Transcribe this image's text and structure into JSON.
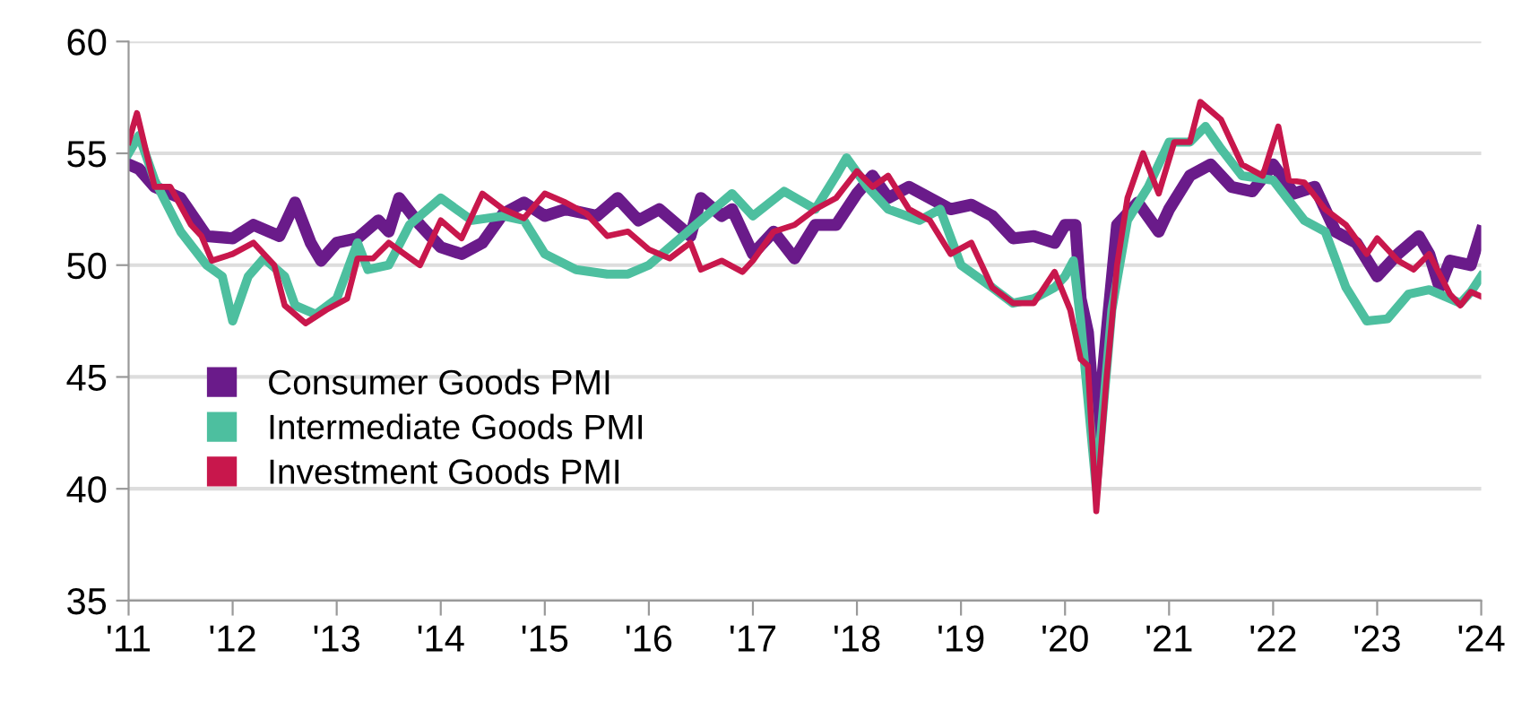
{
  "chart_data": {
    "type": "line",
    "xlim": [
      2011,
      2024
    ],
    "ylim": [
      35,
      60
    ],
    "yticks": [
      35,
      40,
      45,
      50,
      55,
      60
    ],
    "xticks": [
      {
        "value": 2011,
        "label": "'11"
      },
      {
        "value": 2012,
        "label": "'12"
      },
      {
        "value": 2013,
        "label": "'13"
      },
      {
        "value": 2014,
        "label": "'14"
      },
      {
        "value": 2015,
        "label": "'15"
      },
      {
        "value": 2016,
        "label": "'16"
      },
      {
        "value": 2017,
        "label": "'17"
      },
      {
        "value": 2018,
        "label": "'18"
      },
      {
        "value": 2019,
        "label": "'19"
      },
      {
        "value": 2020,
        "label": "'20"
      },
      {
        "value": 2021,
        "label": "'21"
      },
      {
        "value": 2022,
        "label": "'22"
      },
      {
        "value": 2023,
        "label": "'23"
      },
      {
        "value": 2024,
        "label": "'24"
      }
    ],
    "grid": "y",
    "legend": "bottom left",
    "marker": "none",
    "line_style": "solid",
    "series": [
      {
        "name": "Consumer Goods PMI",
        "color": "#6a1b8a",
        "x": [
          2011.0,
          2011.1,
          2011.25,
          2011.5,
          2011.75,
          2012.0,
          2012.2,
          2012.45,
          2012.6,
          2012.75,
          2012.85,
          2013.0,
          2013.2,
          2013.4,
          2013.5,
          2013.6,
          2013.8,
          2014.0,
          2014.2,
          2014.4,
          2014.6,
          2014.8,
          2015.0,
          2015.2,
          2015.5,
          2015.7,
          2015.9,
          2016.1,
          2016.4,
          2016.5,
          2016.7,
          2016.8,
          2017.0,
          2017.2,
          2017.4,
          2017.6,
          2017.8,
          2018.0,
          2018.15,
          2018.3,
          2018.5,
          2018.7,
          2018.9,
          2019.1,
          2019.3,
          2019.5,
          2019.7,
          2019.9,
          2020.0,
          2020.1,
          2020.15,
          2020.22,
          2020.3,
          2020.4,
          2020.5,
          2020.7,
          2020.9,
          2021.0,
          2021.2,
          2021.4,
          2021.5,
          2021.6,
          2021.8,
          2022.0,
          2022.2,
          2022.4,
          2022.6,
          2022.8,
          2023.0,
          2023.2,
          2023.4,
          2023.5,
          2023.6,
          2023.7,
          2023.9,
          2024.0
        ],
        "values": [
          54.5,
          54.3,
          53.5,
          53.0,
          51.3,
          51.2,
          51.8,
          51.3,
          52.8,
          51.0,
          50.2,
          51.0,
          51.2,
          52.0,
          51.5,
          53.0,
          51.8,
          50.8,
          50.5,
          51.0,
          52.3,
          52.8,
          52.2,
          52.5,
          52.2,
          53.0,
          52.0,
          52.5,
          51.3,
          53.0,
          52.2,
          52.5,
          50.5,
          51.5,
          50.3,
          51.8,
          51.8,
          53.2,
          54.0,
          53.0,
          53.5,
          53.0,
          52.5,
          52.7,
          52.2,
          51.2,
          51.3,
          51.0,
          51.8,
          51.8,
          48.5,
          47.0,
          42.0,
          47.0,
          51.8,
          52.8,
          51.5,
          52.5,
          54.0,
          54.5,
          54.0,
          53.5,
          53.3,
          54.5,
          53.2,
          53.5,
          51.5,
          51.0,
          49.5,
          50.5,
          51.3,
          50.5,
          49.0,
          50.2,
          50.0,
          51.5
        ]
      },
      {
        "name": "Intermediate Goods PMI",
        "color": "#4dbf9f",
        "x": [
          2011.0,
          2011.1,
          2011.25,
          2011.5,
          2011.75,
          2011.9,
          2012.0,
          2012.15,
          2012.3,
          2012.5,
          2012.6,
          2012.8,
          2013.0,
          2013.2,
          2013.3,
          2013.5,
          2013.7,
          2014.0,
          2014.3,
          2014.6,
          2014.8,
          2015.0,
          2015.3,
          2015.6,
          2015.8,
          2016.0,
          2016.2,
          2016.5,
          2016.8,
          2017.0,
          2017.3,
          2017.6,
          2017.8,
          2017.9,
          2018.1,
          2018.3,
          2018.6,
          2018.8,
          2019.0,
          2019.3,
          2019.5,
          2019.7,
          2019.9,
          2020.0,
          2020.08,
          2020.15,
          2020.3,
          2020.45,
          2020.6,
          2020.8,
          2021.0,
          2021.2,
          2021.35,
          2021.5,
          2021.7,
          2022.0,
          2022.3,
          2022.5,
          2022.7,
          2022.9,
          2023.1,
          2023.3,
          2023.5,
          2023.7,
          2023.8,
          2023.9,
          2024.0
        ],
        "values": [
          55.0,
          55.8,
          53.8,
          51.5,
          50.0,
          49.5,
          47.5,
          49.5,
          50.3,
          49.5,
          48.2,
          47.8,
          48.5,
          51.0,
          49.8,
          50.0,
          51.8,
          53.0,
          52.0,
          52.2,
          52.0,
          50.5,
          49.8,
          49.6,
          49.6,
          50.0,
          50.8,
          52.0,
          53.2,
          52.2,
          53.3,
          52.5,
          54.0,
          54.8,
          53.5,
          52.5,
          52.0,
          52.5,
          50.0,
          49.0,
          48.3,
          48.5,
          49.0,
          49.5,
          50.2,
          47.5,
          40.0,
          48.0,
          52.0,
          53.5,
          55.5,
          55.5,
          56.2,
          55.2,
          54.0,
          53.8,
          52.0,
          51.5,
          49.0,
          47.5,
          47.6,
          48.7,
          48.9,
          48.5,
          48.3,
          48.8,
          49.5
        ]
      },
      {
        "name": "Investment Goods PMI",
        "color": "#c8174c",
        "x": [
          2011.0,
          2011.08,
          2011.25,
          2011.4,
          2011.6,
          2011.7,
          2011.8,
          2012.0,
          2012.2,
          2012.4,
          2012.5,
          2012.7,
          2012.9,
          2013.1,
          2013.2,
          2013.35,
          2013.5,
          2013.8,
          2014.0,
          2014.2,
          2014.4,
          2014.6,
          2014.8,
          2015.0,
          2015.2,
          2015.4,
          2015.6,
          2015.8,
          2016.0,
          2016.2,
          2016.4,
          2016.5,
          2016.7,
          2016.9,
          2017.0,
          2017.2,
          2017.4,
          2017.6,
          2017.8,
          2018.0,
          2018.15,
          2018.3,
          2018.5,
          2018.7,
          2018.9,
          2019.1,
          2019.3,
          2019.5,
          2019.7,
          2019.9,
          2020.05,
          2020.15,
          2020.22,
          2020.3,
          2020.4,
          2020.5,
          2020.6,
          2020.75,
          2020.9,
          2021.05,
          2021.2,
          2021.3,
          2021.5,
          2021.7,
          2021.9,
          2022.05,
          2022.15,
          2022.3,
          2022.5,
          2022.7,
          2022.9,
          2023.0,
          2023.2,
          2023.35,
          2023.5,
          2023.7,
          2023.8,
          2023.9,
          2024.0
        ],
        "values": [
          55.5,
          56.8,
          53.5,
          53.5,
          51.8,
          51.3,
          50.2,
          50.5,
          51.0,
          50.0,
          48.2,
          47.4,
          48.0,
          48.5,
          50.3,
          50.3,
          51.0,
          50.0,
          52.0,
          51.2,
          53.2,
          52.5,
          52.1,
          53.2,
          52.8,
          52.3,
          51.3,
          51.5,
          50.7,
          50.3,
          51.0,
          49.8,
          50.2,
          49.7,
          50.2,
          51.5,
          51.8,
          52.5,
          53.0,
          54.2,
          53.5,
          54.0,
          52.5,
          52.0,
          50.5,
          51.0,
          49.0,
          48.3,
          48.3,
          49.7,
          48.0,
          45.8,
          45.5,
          39.0,
          45.0,
          50.0,
          53.0,
          55.0,
          53.2,
          55.5,
          55.5,
          57.3,
          56.5,
          54.5,
          54.0,
          56.2,
          53.8,
          53.7,
          52.5,
          51.8,
          50.5,
          51.2,
          50.2,
          49.8,
          50.5,
          48.7,
          48.2,
          48.8,
          48.6
        ]
      }
    ]
  }
}
